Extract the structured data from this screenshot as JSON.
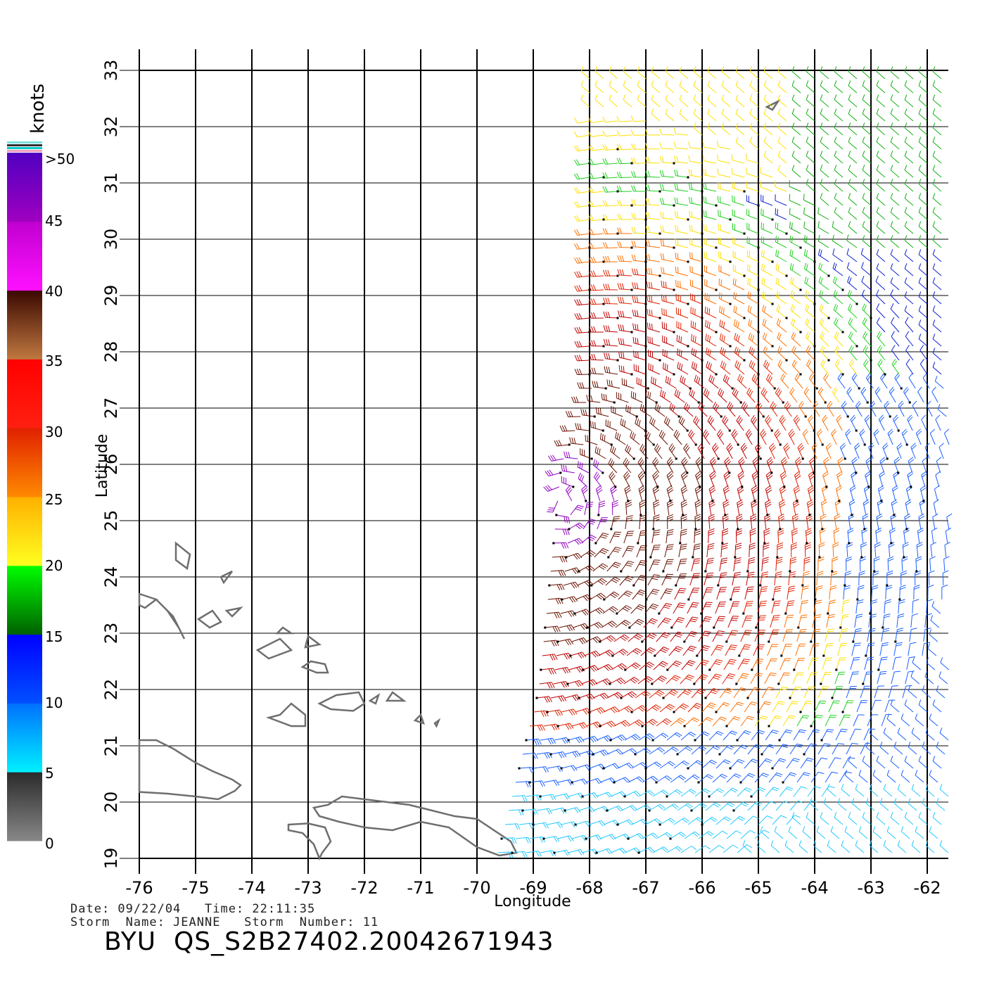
{
  "map": {
    "lon_min": -76,
    "lon_max": -62,
    "lat_min": 19,
    "lat_max": 33,
    "lon_ticks": [
      "-76",
      "-75",
      "-74",
      "-73",
      "-72",
      "-71",
      "-70",
      "-69",
      "-68",
      "-67",
      "-66",
      "-65",
      "-64",
      "-63",
      "-62"
    ],
    "lat_ticks": [
      "19",
      "20",
      "21",
      "22",
      "23",
      "24",
      "25",
      "26",
      "27",
      "28",
      "29",
      "30",
      "31",
      "32",
      "33"
    ],
    "x_label": "Longitude",
    "y_label": "Latitude",
    "grid": true,
    "coastline_color": "#6e6e6e",
    "storm_center": [
      -68.5,
      25.3
    ]
  },
  "colorbar": {
    "title": "knots",
    "labels": [
      ">50",
      "45",
      "40",
      "35",
      "30",
      "25",
      "20",
      "15",
      "10",
      "5",
      "0"
    ],
    "bands": [
      {
        "label": "0-5",
        "colors": [
          "#888888",
          "#2a2a2a"
        ]
      },
      {
        "label": "5-10",
        "colors": [
          "#00f0ff",
          "#0070ff"
        ]
      },
      {
        "label": "10-15",
        "colors": [
          "#0050ff",
          "#0000ff"
        ]
      },
      {
        "label": "15-20",
        "colors": [
          "#006000",
          "#00ff00"
        ]
      },
      {
        "label": "20-25",
        "colors": [
          "#ffff20",
          "#ffb000"
        ]
      },
      {
        "label": "25-30",
        "colors": [
          "#ff8a00",
          "#e02000"
        ]
      },
      {
        "label": "30-35",
        "colors": [
          "#ff2010",
          "#ff0000"
        ]
      },
      {
        "label": "35-40",
        "colors": [
          "#c07840",
          "#3a0800"
        ]
      },
      {
        "label": "40-45",
        "colors": [
          "#ff10ff",
          "#c000d0"
        ]
      },
      {
        "label": ">45",
        "colors": [
          "#a000c0",
          "#5000c0"
        ]
      }
    ],
    "speed_colors": [
      "#22c8ff",
      "#1a60ff",
      "#0a20d0",
      "#10b010",
      "#20d020",
      "#ffe000",
      "#ffa000",
      "#ff7000",
      "#e02000",
      "#c00000",
      "#6a1000",
      "#9000c0"
    ]
  },
  "footer": {
    "date_line": "Date: 09/22/04   Time: 22:11:35",
    "storm_line": "Storm  Name: JEANNE   Storm  Number: 11",
    "file_name": "BYU  QS_S2B27402.20042671943"
  }
}
